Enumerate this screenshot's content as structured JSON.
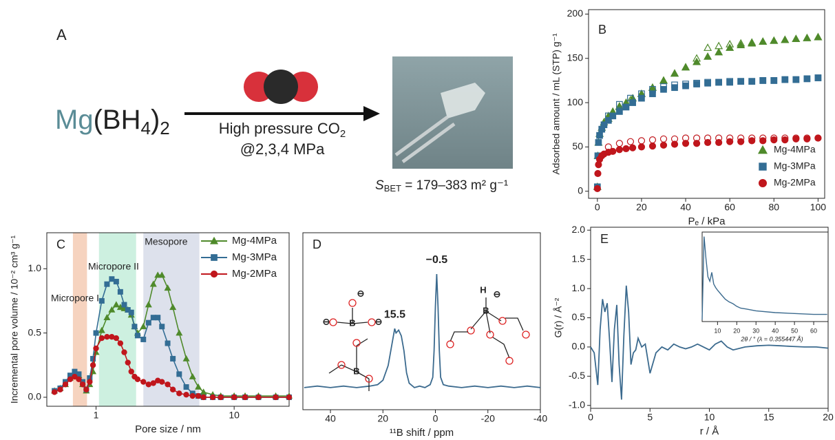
{
  "scheme": {
    "panel": "A",
    "formula": {
      "metal": "Mg",
      "ligand": "(BH",
      "sub1": "4",
      "close": ")",
      "sub2": "2"
    },
    "condition": {
      "text": "High pressure CO",
      "sub": "2"
    },
    "pressure": "@2,3,4 MPa",
    "surface_area": {
      "symbol": "S",
      "sub": "BET",
      "value": " = 179–383 m² g⁻¹"
    }
  },
  "chart_data": [
    {
      "panel": "B",
      "type": "scatter",
      "xlabel": "Pₑ / kPa",
      "ylabel": "Adsorbed amount / mL (STP) g⁻¹",
      "xlim": [
        -4,
        103
      ],
      "ylim": [
        -8,
        205
      ],
      "xticks": [
        0,
        20,
        40,
        60,
        80,
        100
      ],
      "yticks": [
        0,
        50,
        100,
        150,
        200
      ],
      "legend": "lower right",
      "series": [
        {
          "name": "Mg-4MPa",
          "color": "#4f8a2b",
          "marker": "triangle",
          "x": [
            0,
            0.2,
            0.5,
            1,
            2,
            3,
            5,
            7,
            10,
            13,
            16,
            20,
            25,
            30,
            35,
            40,
            45,
            50,
            55,
            60,
            65,
            70,
            75,
            80,
            85,
            90,
            95,
            100
          ],
          "values": [
            5,
            40,
            55,
            65,
            72,
            78,
            85,
            90,
            96,
            100,
            105,
            110,
            117,
            125,
            133,
            140,
            146,
            152,
            157,
            162,
            165,
            167,
            169,
            170,
            171,
            172,
            173,
            174
          ],
          "desorption_x": [
            100,
            95,
            90,
            85,
            80,
            75,
            70,
            65,
            60,
            55,
            50,
            45,
            40,
            35,
            30,
            25,
            20,
            15,
            10,
            5
          ],
          "desorption_values": [
            174,
            173,
            172,
            171,
            170,
            169,
            168,
            167,
            166,
            164,
            162,
            150,
            140,
            133,
            125,
            117,
            110,
            103,
            95,
            82
          ]
        },
        {
          "name": "Mg-3MPa",
          "color": "#336d94",
          "marker": "square",
          "x": [
            0,
            0.2,
            0.5,
            1,
            2,
            3,
            5,
            7,
            10,
            13,
            16,
            20,
            25,
            30,
            35,
            40,
            45,
            50,
            55,
            60,
            65,
            70,
            75,
            80,
            85,
            90,
            95,
            100
          ],
          "values": [
            5,
            40,
            55,
            63,
            70,
            75,
            80,
            85,
            90,
            95,
            100,
            105,
            110,
            115,
            117,
            119,
            121,
            122,
            123,
            123,
            124,
            124,
            125,
            125,
            126,
            126,
            127,
            128
          ],
          "desorption_x": [
            100,
            95,
            90,
            85,
            80,
            75,
            70,
            65,
            60,
            55,
            50,
            45,
            40,
            35,
            30,
            25,
            20,
            15,
            10,
            5
          ],
          "desorption_values": [
            128,
            127,
            126,
            126,
            125,
            125,
            124,
            124,
            124,
            123,
            123,
            122,
            121,
            120,
            118,
            115,
            110,
            105,
            98,
            85
          ]
        },
        {
          "name": "Mg-2MPa",
          "color": "#c0161c",
          "marker": "circle",
          "x": [
            0,
            0.2,
            0.5,
            1,
            2,
            3,
            5,
            7,
            10,
            13,
            16,
            20,
            25,
            30,
            35,
            40,
            45,
            50,
            55,
            60,
            65,
            70,
            75,
            80,
            85,
            90,
            95,
            100
          ],
          "values": [
            3,
            20,
            30,
            36,
            40,
            42,
            44,
            45,
            47,
            48,
            49,
            50,
            51,
            52,
            53,
            54,
            54,
            55,
            55,
            56,
            56,
            57,
            57,
            58,
            58,
            59,
            59,
            60
          ],
          "desorption_x": [
            100,
            95,
            90,
            85,
            80,
            75,
            70,
            65,
            60,
            55,
            50,
            45,
            40,
            35,
            30,
            25,
            20,
            15,
            10,
            5
          ],
          "desorption_values": [
            60,
            60,
            60,
            60,
            60,
            60,
            60,
            60,
            60,
            60,
            60,
            60,
            60,
            59,
            59,
            58,
            57,
            56,
            54,
            50
          ]
        }
      ]
    },
    {
      "panel": "C",
      "type": "line",
      "xscale": "log",
      "xlabel": "Pore size / nm",
      "ylabel": "Incremental pore volume / 10⁻² cm³ g⁻¹",
      "xlim": [
        0.44,
        25
      ],
      "ylim": [
        -0.07,
        1.28
      ],
      "xticks": [
        1,
        10
      ],
      "yticks": [
        {
          "value": 0,
          "label": "0.0"
        },
        {
          "value": 0.5,
          "label": "0.5"
        },
        {
          "value": 1,
          "label": "1.0"
        }
      ],
      "legend": "upper right",
      "regions": [
        {
          "label": "Micropore I",
          "color": "#f6d3bf",
          "label_color": "#e8956a",
          "range": [
            0.68,
            0.86
          ]
        },
        {
          "label": "Micropore II",
          "color": "#cdf0e0",
          "label_color": "#3fc494",
          "range": [
            1.05,
            1.95
          ]
        },
        {
          "label": "Mesopore",
          "color": "#dde1ec",
          "label_color": "#8fa4cc",
          "range": [
            2.2,
            5.6
          ]
        }
      ],
      "x": [
        0.5,
        0.55,
        0.6,
        0.65,
        0.7,
        0.75,
        0.8,
        0.85,
        0.9,
        0.95,
        1.0,
        1.1,
        1.2,
        1.3,
        1.4,
        1.5,
        1.6,
        1.7,
        1.8,
        1.9,
        2.0,
        2.2,
        2.4,
        2.6,
        2.8,
        3.0,
        3.3,
        3.6,
        4.0,
        4.5,
        5.0,
        5.5,
        6,
        7,
        8,
        10,
        12,
        15,
        20,
        25
      ],
      "series": [
        {
          "name": "Mg-4MPa",
          "color": "#4f8a2b",
          "marker": "triangle",
          "values": [
            0.05,
            0.07,
            0.1,
            0.15,
            0.19,
            0.17,
            0.1,
            0.05,
            0.1,
            0.2,
            0.35,
            0.52,
            0.62,
            0.68,
            0.72,
            0.7,
            0.69,
            0.68,
            0.64,
            0.55,
            0.5,
            0.55,
            0.72,
            0.88,
            0.95,
            0.95,
            0.85,
            0.7,
            0.5,
            0.3,
            0.16,
            0.08,
            0.04,
            0.02,
            0.01,
            0.01,
            0.01,
            0.01,
            0.01,
            0.01
          ]
        },
        {
          "name": "Mg-3MPa",
          "color": "#336d94",
          "marker": "square",
          "values": [
            0.05,
            0.07,
            0.12,
            0.17,
            0.2,
            0.18,
            0.12,
            0.06,
            0.15,
            0.3,
            0.5,
            0.75,
            0.88,
            0.92,
            0.9,
            0.82,
            0.72,
            0.68,
            0.66,
            0.55,
            0.48,
            0.45,
            0.58,
            0.62,
            0.62,
            0.55,
            0.42,
            0.3,
            0.18,
            0.08,
            0.03,
            0.01,
            0,
            0,
            0,
            0,
            0,
            0,
            0,
            0
          ]
        },
        {
          "name": "Mg-2MPa",
          "color": "#c0161c",
          "marker": "circle",
          "values": [
            0.04,
            0.06,
            0.1,
            0.14,
            0.16,
            0.14,
            0.1,
            0.06,
            0.12,
            0.25,
            0.38,
            0.46,
            0.47,
            0.47,
            0.46,
            0.42,
            0.35,
            0.27,
            0.2,
            0.16,
            0.14,
            0.12,
            0.1,
            0.11,
            0.13,
            0.12,
            0.1,
            0.06,
            0.03,
            0.02,
            0.01,
            0.01,
            0,
            0,
            0,
            0,
            0,
            0,
            0,
            0
          ]
        }
      ]
    },
    {
      "panel": "D",
      "type": "line",
      "xlabel": "¹¹B shift / ppm",
      "color": "#3b6a8e",
      "xlim": [
        50.5,
        -40
      ],
      "ylim": [
        -0.1,
        1.1
      ],
      "xticks": [
        40,
        20,
        0,
        -20,
        -40
      ],
      "x": [
        50,
        45,
        40,
        35,
        30,
        25,
        22,
        20,
        18,
        17,
        16,
        15.5,
        15,
        14,
        13,
        12,
        11,
        10,
        8,
        6,
        4,
        3,
        2,
        1,
        0.5,
        0,
        -0.5,
        -1,
        -1.5,
        -2,
        -3,
        -5,
        -10,
        -15,
        -20,
        -25,
        -30,
        -35,
        -40
      ],
      "values": [
        0.05,
        0.06,
        0.05,
        0.06,
        0.05,
        0.06,
        0.07,
        0.1,
        0.2,
        0.3,
        0.4,
        0.45,
        0.42,
        0.44,
        0.4,
        0.3,
        0.15,
        0.08,
        0.05,
        0.06,
        0.05,
        0.06,
        0.07,
        0.12,
        0.3,
        0.6,
        0.82,
        0.6,
        0.3,
        0.12,
        0.07,
        0.06,
        0.05,
        0.06,
        0.05,
        0.06,
        0.05,
        0.06,
        0.05
      ],
      "peaks": [
        {
          "value": 15.5,
          "label": "15.5"
        },
        {
          "value": -0.5,
          "label": "−0.5"
        }
      ],
      "structure_labels": [
        "⊖",
        "⊖",
        "⊖",
        "B",
        "B",
        "H",
        "⊖",
        "B"
      ]
    },
    {
      "panel": "E",
      "type": "line",
      "xlabel": "r / Å",
      "ylabel": "G(r) / Å⁻²",
      "color": "#3b6a8e",
      "xlim": [
        0,
        20
      ],
      "ylim": [
        -1.05,
        2.05
      ],
      "xticks": [
        0,
        5,
        10,
        15,
        20
      ],
      "yticks": [
        {
          "value": -1,
          "label": "-1.0"
        },
        -0.5,
        {
          "value": 0,
          "label": "0.0"
        },
        0.5,
        {
          "value": 1,
          "label": "1.0"
        },
        1.5,
        {
          "value": 2,
          "label": "2.0"
        }
      ],
      "x": [
        0,
        0.3,
        0.6,
        0.8,
        1.0,
        1.2,
        1.4,
        1.6,
        1.8,
        2.0,
        2.2,
        2.4,
        2.6,
        2.8,
        3.0,
        3.2,
        3.4,
        3.6,
        3.8,
        4.0,
        4.3,
        4.6,
        5.0,
        5.5,
        6.0,
        6.5,
        7,
        7.5,
        8,
        8.5,
        9,
        9.5,
        10,
        10.5,
        11,
        11.5,
        12,
        13,
        14,
        15,
        16,
        17,
        18,
        19,
        20
      ],
      "values": [
        0,
        -0.1,
        -0.65,
        0.3,
        0.82,
        0.6,
        0.75,
        0.1,
        -0.6,
        0.3,
        0.72,
        -0.3,
        -0.9,
        0.2,
        1.05,
        0.6,
        -0.3,
        -0.1,
        -0.05,
        0.15,
        0.0,
        0.05,
        -0.45,
        -0.1,
        0.0,
        -0.05,
        0.05,
        0.0,
        -0.03,
        0.0,
        0.05,
        0.0,
        -0.05,
        0.05,
        0.1,
        0.0,
        -0.05,
        0.0,
        0.02,
        0.03,
        0.02,
        0.01,
        0.0,
        0.0,
        -0.02
      ],
      "inset": {
        "xlabel": "2θ / ° (λ = 0.355447 Å)",
        "xlim": [
          2,
          67.5
        ],
        "ylim": [
          0,
          1
        ],
        "xticks": [
          10,
          20,
          30,
          40,
          50,
          60
        ],
        "x": [
          2,
          3,
          4,
          5,
          6,
          7,
          8,
          9,
          10,
          12,
          14,
          16,
          18,
          20,
          22,
          25,
          30,
          40,
          50,
          60,
          67
        ],
        "values": [
          0.02,
          0.95,
          0.7,
          0.5,
          0.45,
          0.55,
          0.42,
          0.38,
          0.35,
          0.3,
          0.25,
          0.22,
          0.2,
          0.17,
          0.15,
          0.14,
          0.12,
          0.1,
          0.09,
          0.08,
          0.08
        ]
      }
    }
  ]
}
